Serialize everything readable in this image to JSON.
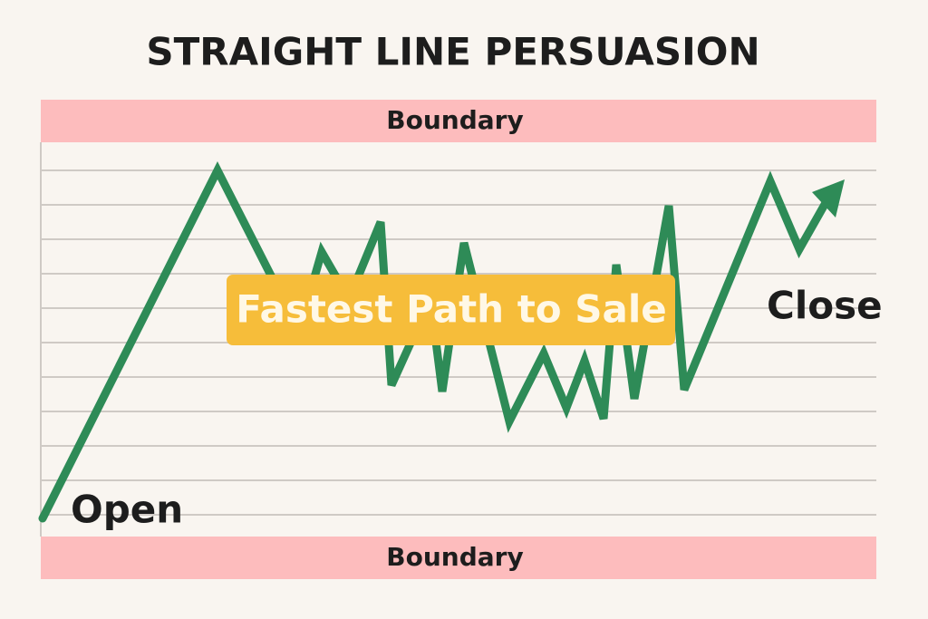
{
  "title": "STRAIGHT LINE PERSUASION",
  "boundaries": {
    "top": "Boundary",
    "bottom": "Boundary"
  },
  "callout": "Fastest Path to Sale",
  "labels": {
    "start": "Open",
    "end": "Close"
  }
}
